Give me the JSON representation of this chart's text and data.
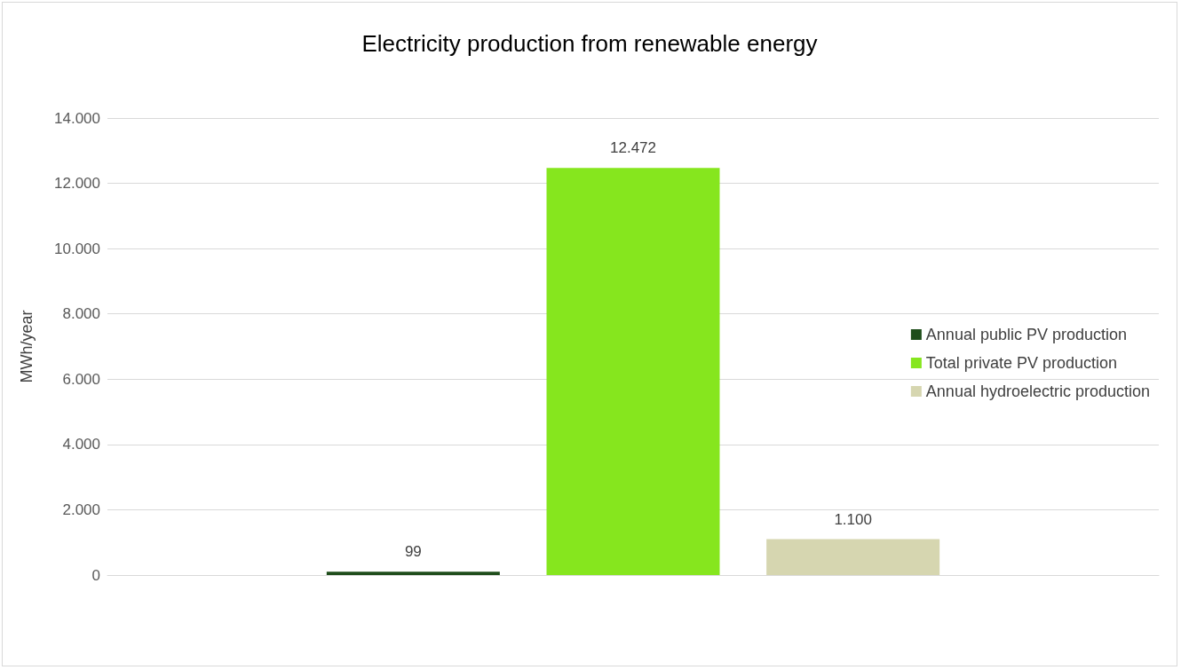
{
  "chart_data": {
    "type": "bar",
    "title": "Electricity production from renewable energy",
    "ylabel": "MWh/year",
    "categories": [
      null
    ],
    "series": [
      {
        "name": "Annual public PV production",
        "color": "#1e4d1a",
        "values": [
          99
        ],
        "value_labels": [
          "99"
        ]
      },
      {
        "name": "Total private PV production",
        "color": "#86e61e",
        "values": [
          12472
        ],
        "value_labels": [
          "12.472"
        ]
      },
      {
        "name": "Annual hydroelectric production",
        "color": "#d6d6b0",
        "values": [
          1100
        ],
        "value_labels": [
          "1.100"
        ]
      }
    ],
    "ylim": [
      0,
      14000
    ],
    "yticks": [
      {
        "value": 0,
        "label": "0"
      },
      {
        "value": 2000,
        "label": "2.000"
      },
      {
        "value": 4000,
        "label": "4.000"
      },
      {
        "value": 6000,
        "label": "6.000"
      },
      {
        "value": 8000,
        "label": "8.000"
      },
      {
        "value": 10000,
        "label": "10.000"
      },
      {
        "value": 12000,
        "label": "12.000"
      },
      {
        "value": 14000,
        "label": "14.000"
      }
    ],
    "grid": "y",
    "legend": "right"
  }
}
